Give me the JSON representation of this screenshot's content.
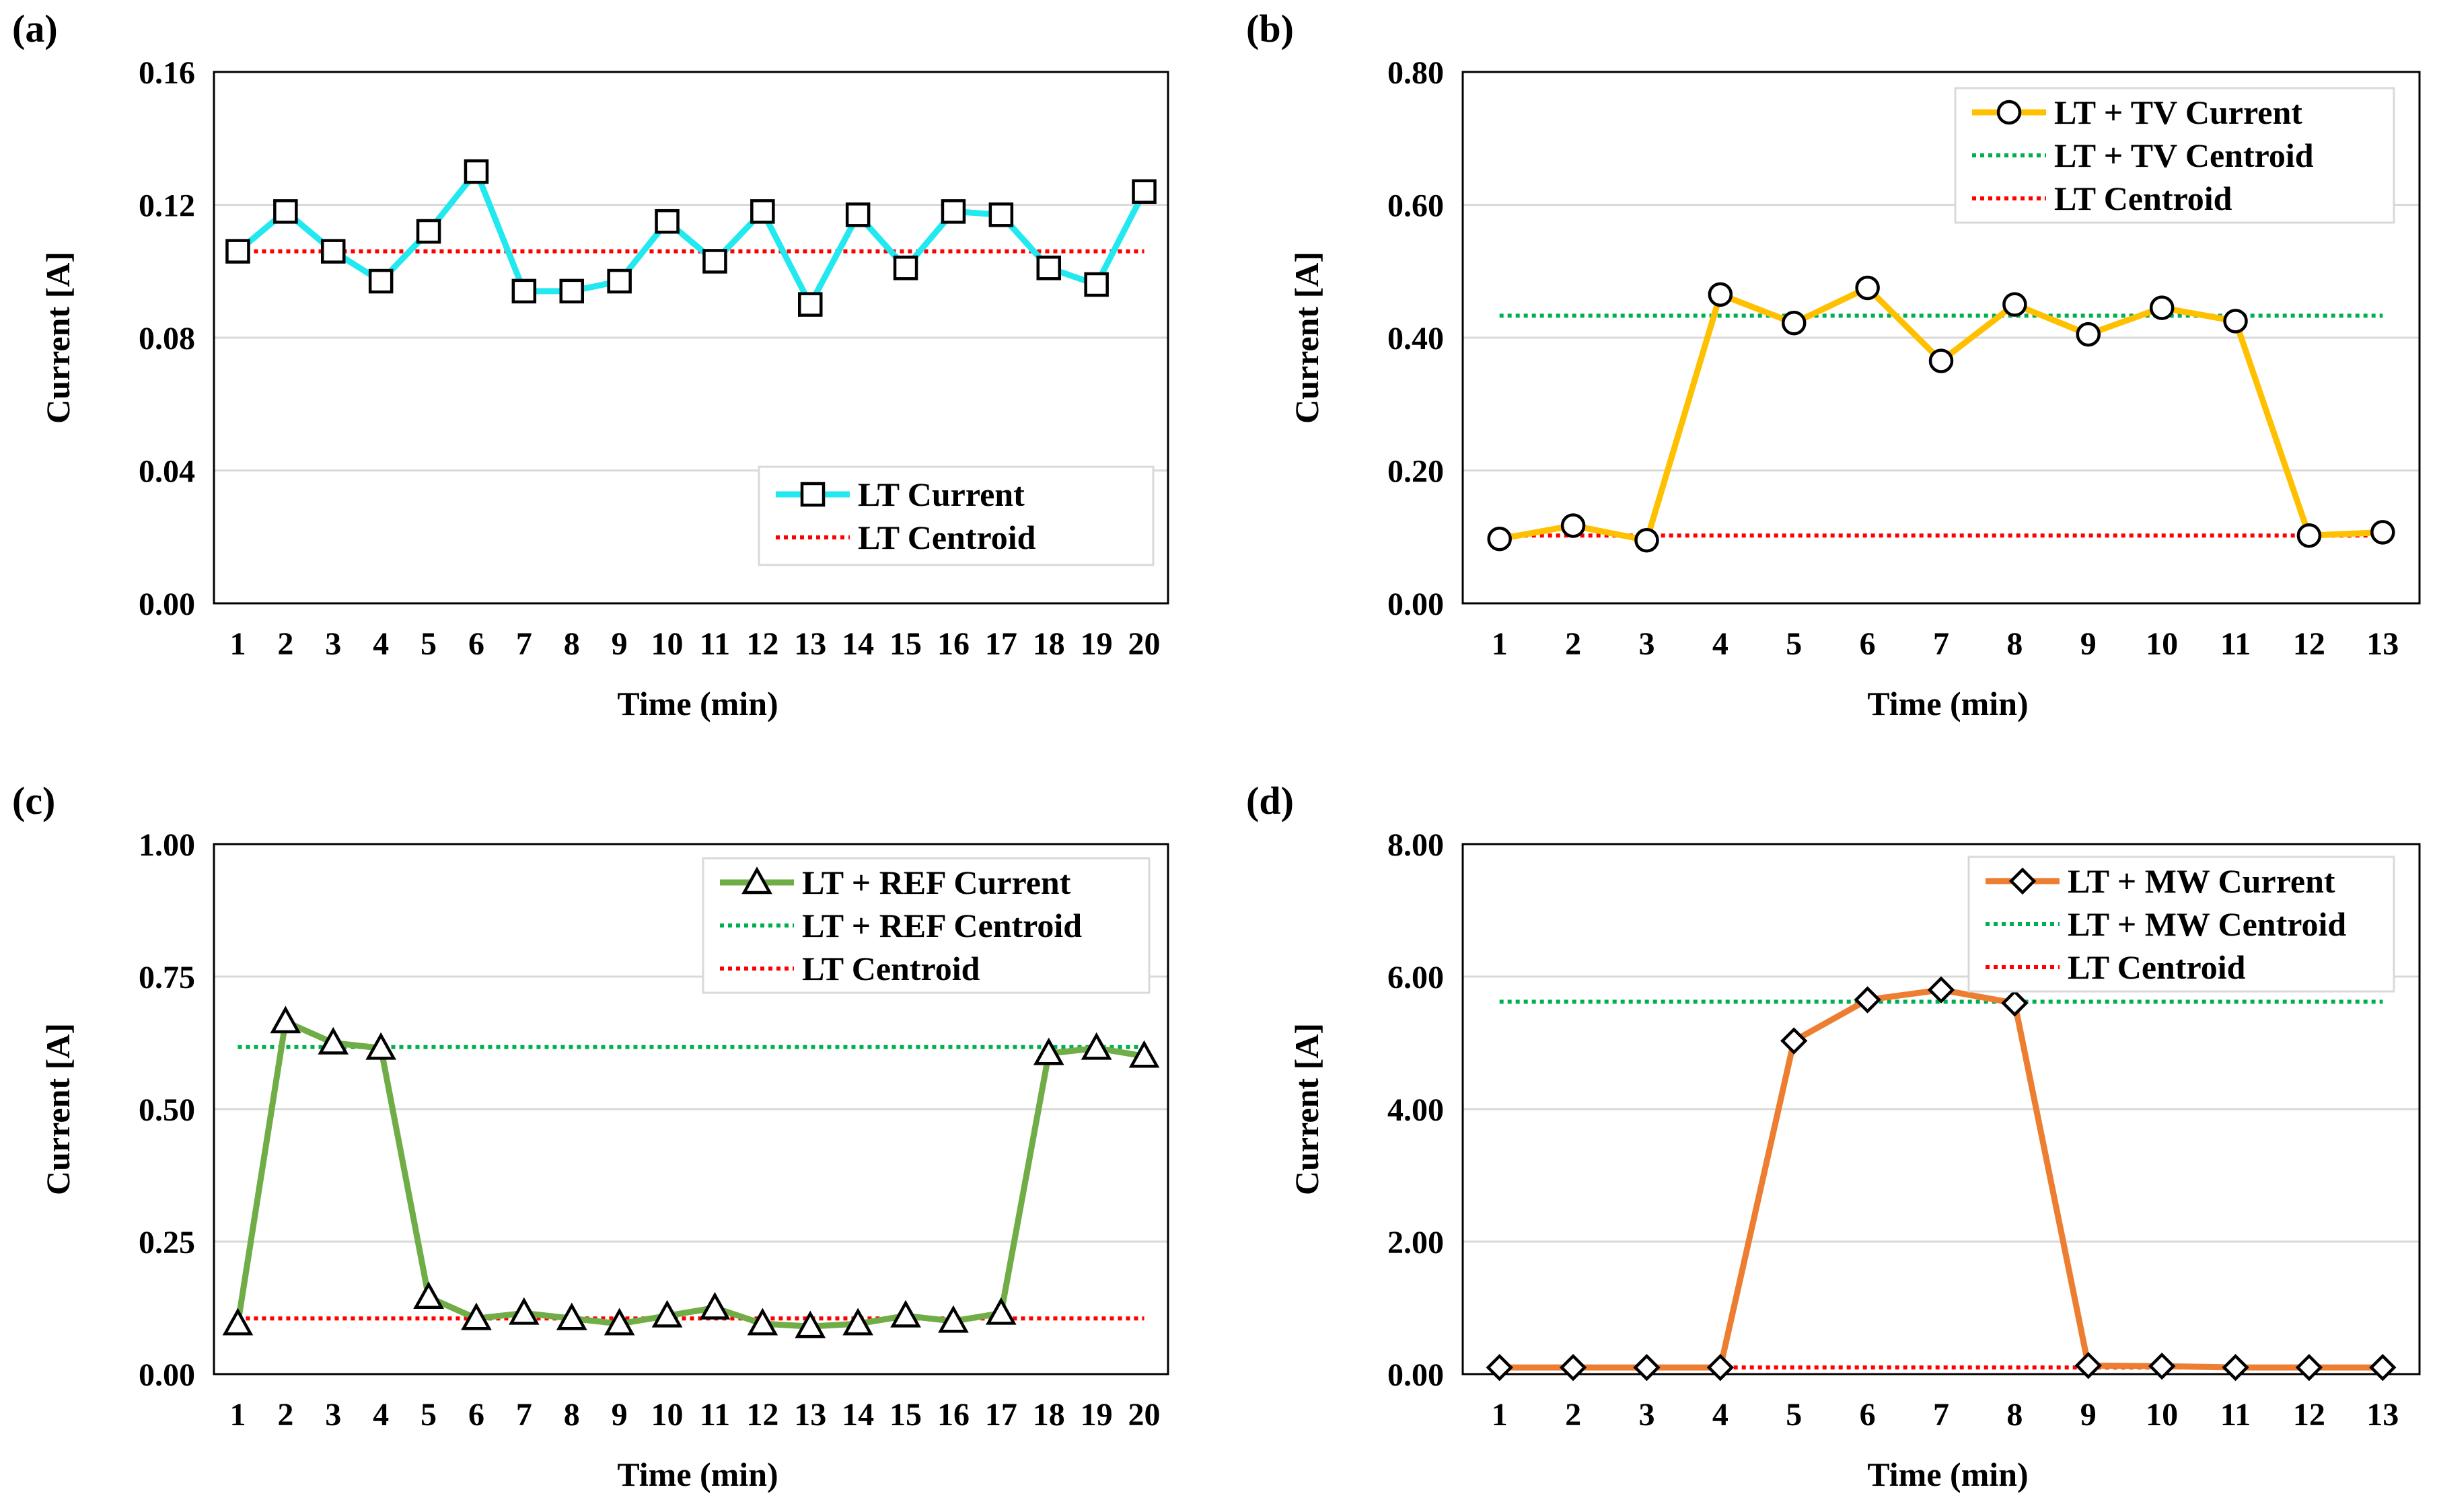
{
  "chart_data": [
    {
      "panel_label": "(a)",
      "type": "line",
      "xlabel": "Time (min)",
      "ylabel": "Current [A]",
      "categories": [
        "1",
        "2",
        "3",
        "4",
        "5",
        "6",
        "7",
        "8",
        "9",
        "10",
        "11",
        "12",
        "13",
        "14",
        "15",
        "16",
        "17",
        "18",
        "19",
        "20"
      ],
      "ylim": [
        0,
        0.16
      ],
      "yticks": [
        "0.00",
        "0.04",
        "0.08",
        "0.12",
        "0.16"
      ],
      "grid": true,
      "legend_position": "bottom-right",
      "series": [
        {
          "name": "LT Current",
          "style": "solid",
          "marker": "square",
          "color": "#22e8f0",
          "values": [
            0.106,
            0.118,
            0.106,
            0.097,
            0.112,
            0.13,
            0.094,
            0.094,
            0.097,
            0.115,
            0.103,
            0.118,
            0.09,
            0.117,
            0.101,
            0.118,
            0.117,
            0.101,
            0.096,
            0.124
          ]
        },
        {
          "name": "LT Centroid",
          "style": "dotted",
          "marker": "none",
          "color": "#ff0000",
          "values": [
            0.106,
            0.106,
            0.106,
            0.106,
            0.106,
            0.106,
            0.106,
            0.106,
            0.106,
            0.106,
            0.106,
            0.106,
            0.106,
            0.106,
            0.106,
            0.106,
            0.106,
            0.106,
            0.106,
            0.106
          ]
        }
      ]
    },
    {
      "panel_label": "(b)",
      "type": "line",
      "xlabel": "Time (min)",
      "ylabel": "Current [A]",
      "categories": [
        "1",
        "2",
        "3",
        "4",
        "5",
        "6",
        "7",
        "8",
        "9",
        "10",
        "11",
        "12",
        "13"
      ],
      "ylim": [
        0,
        0.8
      ],
      "yticks": [
        "0.00",
        "0.20",
        "0.40",
        "0.60",
        "0.80"
      ],
      "grid": true,
      "legend_position": "top-right",
      "series": [
        {
          "name": "LT + TV Current",
          "style": "solid",
          "marker": "circle",
          "color": "#ffc000",
          "values": [
            0.097,
            0.117,
            0.095,
            0.465,
            0.422,
            0.475,
            0.365,
            0.45,
            0.405,
            0.445,
            0.425,
            0.102,
            0.107
          ]
        },
        {
          "name": "LT + TV Centroid",
          "style": "dotted",
          "marker": "none",
          "color": "#00b050",
          "values": [
            0.433,
            0.433,
            0.433,
            0.433,
            0.433,
            0.433,
            0.433,
            0.433,
            0.433,
            0.433,
            0.433,
            0.433,
            0.433
          ]
        },
        {
          "name": "LT Centroid",
          "style": "dotted",
          "marker": "none",
          "color": "#ff0000",
          "values": [
            0.102,
            0.102,
            0.102,
            0.102,
            0.102,
            0.102,
            0.102,
            0.102,
            0.102,
            0.102,
            0.102,
            0.102,
            0.102
          ]
        }
      ]
    },
    {
      "panel_label": "(c)",
      "type": "line",
      "xlabel": "Time (min)",
      "ylabel": "Current [A]",
      "categories": [
        "1",
        "2",
        "3",
        "4",
        "5",
        "6",
        "7",
        "8",
        "9",
        "10",
        "11",
        "12",
        "13",
        "14",
        "15",
        "16",
        "17",
        "18",
        "19",
        "20"
      ],
      "ylim": [
        0,
        1.0
      ],
      "yticks": [
        "0.00",
        "0.25",
        "0.50",
        "0.75",
        "1.00"
      ],
      "grid": true,
      "legend_position": "top-right",
      "series": [
        {
          "name": "LT + REF Current",
          "style": "solid",
          "marker": "triangle",
          "color": "#70ad47",
          "values": [
            0.095,
            0.665,
            0.625,
            0.615,
            0.145,
            0.105,
            0.115,
            0.105,
            0.095,
            0.11,
            0.125,
            0.095,
            0.09,
            0.095,
            0.11,
            0.1,
            0.115,
            0.605,
            0.615,
            0.6
          ]
        },
        {
          "name": "LT + REF Centroid",
          "style": "dotted",
          "marker": "none",
          "color": "#00b050",
          "values": [
            0.617,
            0.617,
            0.617,
            0.617,
            0.617,
            0.617,
            0.617,
            0.617,
            0.617,
            0.617,
            0.617,
            0.617,
            0.617,
            0.617,
            0.617,
            0.617,
            0.617,
            0.617,
            0.617,
            0.617
          ]
        },
        {
          "name": "LT Centroid",
          "style": "dotted",
          "marker": "none",
          "color": "#ff0000",
          "values": [
            0.105,
            0.105,
            0.105,
            0.105,
            0.105,
            0.105,
            0.105,
            0.105,
            0.105,
            0.105,
            0.105,
            0.105,
            0.105,
            0.105,
            0.105,
            0.105,
            0.105,
            0.105,
            0.105,
            0.105
          ]
        }
      ]
    },
    {
      "panel_label": "(d)",
      "type": "line",
      "xlabel": "Time (min)",
      "ylabel": "Current [A]",
      "categories": [
        "1",
        "2",
        "3",
        "4",
        "5",
        "6",
        "7",
        "8",
        "9",
        "10",
        "11",
        "12",
        "13"
      ],
      "ylim": [
        0,
        8.0
      ],
      "yticks": [
        "0.00",
        "2.00",
        "4.00",
        "6.00",
        "8.00"
      ],
      "grid": true,
      "legend_position": "top-right",
      "series": [
        {
          "name": "LT + MW Current",
          "style": "solid",
          "marker": "diamond",
          "color": "#ed7d31",
          "values": [
            0.1,
            0.1,
            0.1,
            0.1,
            5.03,
            5.65,
            5.8,
            5.6,
            0.13,
            0.12,
            0.1,
            0.1,
            0.1
          ]
        },
        {
          "name": "LT + MW Centroid",
          "style": "dotted",
          "marker": "none",
          "color": "#00b050",
          "values": [
            5.62,
            5.62,
            5.62,
            5.62,
            5.62,
            5.62,
            5.62,
            5.62,
            5.62,
            5.62,
            5.62,
            5.62,
            5.62
          ]
        },
        {
          "name": "LT Centroid",
          "style": "dotted",
          "marker": "none",
          "color": "#ff0000",
          "values": [
            0.1,
            0.1,
            0.1,
            0.1,
            0.1,
            0.1,
            0.1,
            0.1,
            0.1,
            0.1,
            0.1,
            0.1,
            0.1
          ]
        }
      ]
    }
  ]
}
